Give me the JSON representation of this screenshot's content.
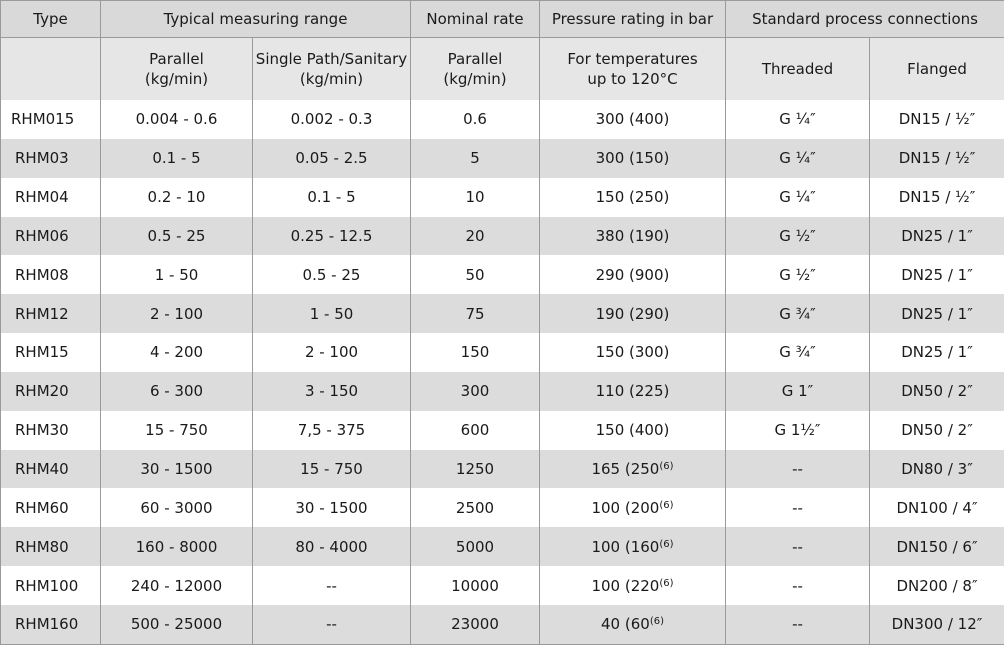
{
  "headers": {
    "type": "Type",
    "range": "Typical measuring range",
    "nominal": "Nominal rate",
    "pressure": "Pressure rating in bar",
    "connections": "Standard process connections",
    "sub_parallel_line1": "Parallel",
    "sub_parallel_line2": "(kg/min)",
    "sub_single_line1": "Single Path/Sanitary",
    "sub_single_line2": "(kg/min)",
    "sub_nominal_line1": "Parallel",
    "sub_nominal_line2": "(kg/min)",
    "sub_temp_line1": "For temperatures",
    "sub_temp_line2": "up to 120°C",
    "sub_threaded": "Threaded",
    "sub_flanged": "Flanged"
  },
  "rows": [
    {
      "type": "RHM015",
      "parallel": "0.004 - 0.6",
      "single": "0.002 - 0.3",
      "nominal": "0.6",
      "pressure": "300 (400)",
      "pressure_sup": "",
      "threaded": "G ¼″",
      "flanged": "DN15 / ½″"
    },
    {
      "type": "RHM03",
      "parallel": "0.1 - 5",
      "single": "0.05 - 2.5",
      "nominal": "5",
      "pressure": "300 (150)",
      "pressure_sup": "",
      "threaded": "G ¼″",
      "flanged": "DN15 / ½″"
    },
    {
      "type": "RHM04",
      "parallel": "0.2 - 10",
      "single": "0.1 - 5",
      "nominal": "10",
      "pressure": "150 (250)",
      "pressure_sup": "",
      "threaded": "G ¼″",
      "flanged": "DN15 / ½″"
    },
    {
      "type": "RHM06",
      "parallel": "0.5 - 25",
      "single": "0.25 - 12.5",
      "nominal": "20",
      "pressure": "380 (190)",
      "pressure_sup": "",
      "threaded": "G ½″",
      "flanged": "DN25 / 1″"
    },
    {
      "type": "RHM08",
      "parallel": "1 - 50",
      "single": "0.5 - 25",
      "nominal": "50",
      "pressure": "290 (900)",
      "pressure_sup": "",
      "threaded": "G ½″",
      "flanged": "DN25 / 1″"
    },
    {
      "type": "RHM12",
      "parallel": "2 - 100",
      "single": "1 - 50",
      "nominal": "75",
      "pressure": "190 (290)",
      "pressure_sup": "",
      "threaded": "G ¾″",
      "flanged": "DN25 / 1″"
    },
    {
      "type": "RHM15",
      "parallel": "4 - 200",
      "single": "2 - 100",
      "nominal": "150",
      "pressure": "150 (300)",
      "pressure_sup": "",
      "threaded": "G ¾″",
      "flanged": "DN25 / 1″"
    },
    {
      "type": "RHM20",
      "parallel": "6 - 300",
      "single": "3 - 150",
      "nominal": "300",
      "pressure": "110 (225)",
      "pressure_sup": "",
      "threaded": "G 1″",
      "flanged": "DN50 / 2″"
    },
    {
      "type": "RHM30",
      "parallel": "15 - 750",
      "single": "7,5 - 375",
      "nominal": "600",
      "pressure": "150 (400)",
      "pressure_sup": "",
      "threaded": "G 1½″",
      "flanged": "DN50 / 2″"
    },
    {
      "type": "RHM40",
      "parallel": "30 - 1500",
      "single": "15 - 750",
      "nominal": "1250",
      "pressure": "165 (250",
      "pressure_sup": "(6)",
      "threaded": "--",
      "flanged": "DN80 / 3″"
    },
    {
      "type": "RHM60",
      "parallel": "60 - 3000",
      "single": "30 - 1500",
      "nominal": "2500",
      "pressure": "100 (200",
      "pressure_sup": "(6)",
      "threaded": "--",
      "flanged": "DN100 / 4″"
    },
    {
      "type": "RHM80",
      "parallel": "160 - 8000",
      "single": "80 - 4000",
      "nominal": "5000",
      "pressure": "100 (160",
      "pressure_sup": "(6)",
      "threaded": "--",
      "flanged": "DN150 / 6″"
    },
    {
      "type": "RHM100",
      "parallel": "240 - 12000",
      "single": "--",
      "nominal": "10000",
      "pressure": "100 (220",
      "pressure_sup": "(6)",
      "threaded": "--",
      "flanged": "DN200 / 8″"
    },
    {
      "type": "RHM160",
      "parallel": "500 - 25000",
      "single": "--",
      "nominal": "23000",
      "pressure": "40 (60",
      "pressure_sup": "(6)",
      "threaded": "--",
      "flanged": "DN300 / 12″"
    }
  ]
}
